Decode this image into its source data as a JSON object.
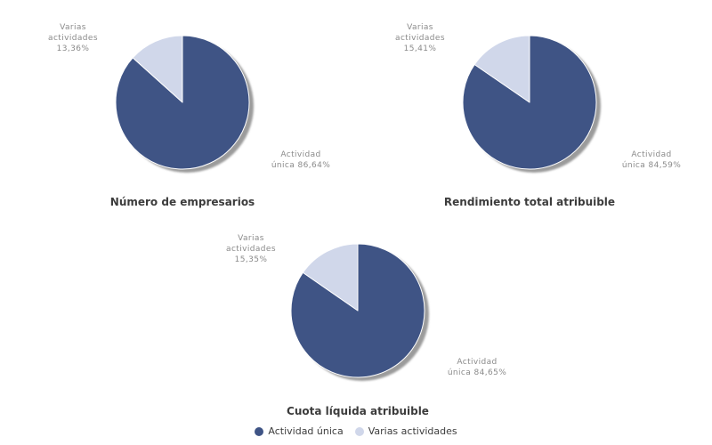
{
  "palette": {
    "background": "#ffffff",
    "shadow": "#9b9b9b",
    "label_gray": "#8a8a8a",
    "title_color": "#3c3c3c"
  },
  "chart_data": [
    {
      "type": "pie",
      "title": "Número de empresarios",
      "categories": [
        "Actividad única",
        "Varias actividades"
      ],
      "values": [
        86.64,
        13.36
      ],
      "colors": [
        "#3f5485",
        "#d0d7ea"
      ],
      "start_angle_deg": -90,
      "direction": "clockwise",
      "callouts": {
        "unica": [
          "Actividad",
          "única 86,64%"
        ],
        "varias": [
          "Varias",
          "actividades",
          "13,36%"
        ]
      }
    },
    {
      "type": "pie",
      "title": "Rendimiento total atribuible",
      "categories": [
        "Actividad única",
        "Varias actividades"
      ],
      "values": [
        84.59,
        15.41
      ],
      "colors": [
        "#3f5485",
        "#d0d7ea"
      ],
      "start_angle_deg": -90,
      "direction": "clockwise",
      "callouts": {
        "unica": [
          "Actividad",
          "única 84,59%"
        ],
        "varias": [
          "Varias",
          "actividades",
          "15,41%"
        ]
      }
    },
    {
      "type": "pie",
      "title": "Cuota líquida atribuible",
      "categories": [
        "Actividad única",
        "Varias actividades"
      ],
      "values": [
        84.65,
        15.35
      ],
      "colors": [
        "#3f5485",
        "#d0d7ea"
      ],
      "start_angle_deg": -90,
      "direction": "clockwise",
      "callouts": {
        "unica": [
          "Actividad",
          "única 84,65%"
        ],
        "varias": [
          "Varias",
          "actividades",
          "15,35%"
        ]
      }
    }
  ],
  "legend": {
    "items": [
      {
        "label": "Actividad única",
        "color": "#3f5485"
      },
      {
        "label": "Varias actividades",
        "color": "#d0d7ea"
      }
    ]
  }
}
